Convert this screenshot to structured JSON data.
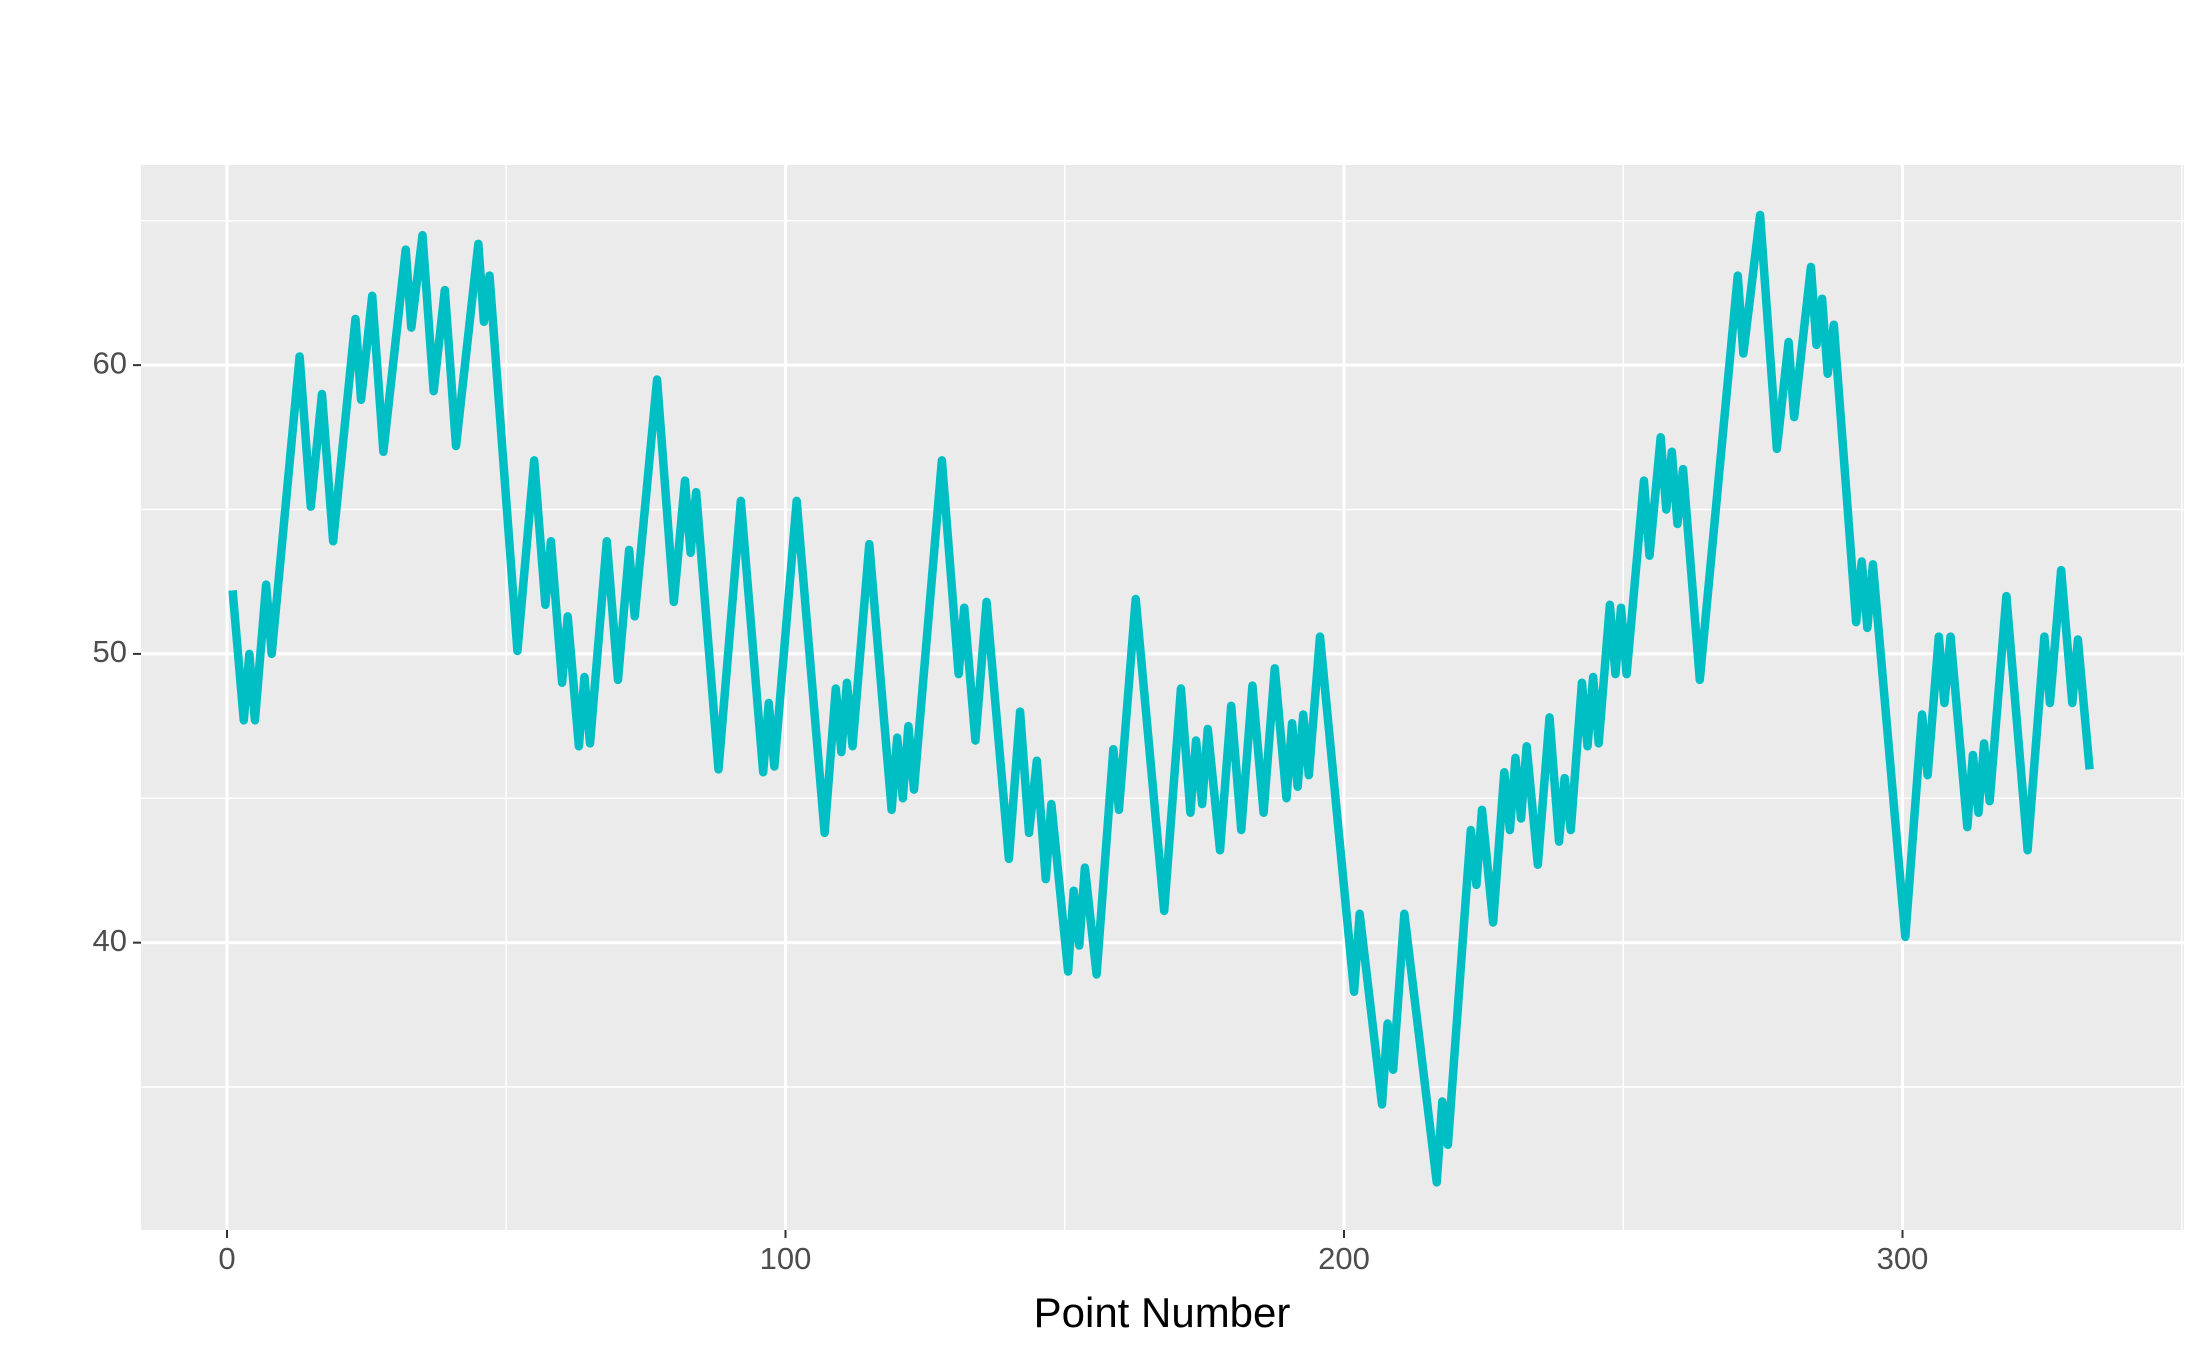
{
  "chart_data": {
    "type": "line",
    "xlabel": "Point Number",
    "x": [
      1,
      3,
      4,
      5,
      7,
      8,
      13,
      15,
      17,
      19,
      23,
      24,
      26,
      28,
      32,
      33,
      35,
      37,
      39,
      41,
      45,
      46,
      47,
      52,
      55,
      57,
      58,
      60,
      61,
      63,
      64,
      65,
      68,
      70,
      72,
      73,
      77,
      80,
      82,
      83,
      84,
      88,
      92,
      96,
      97,
      98,
      102,
      107,
      109,
      110,
      111,
      112,
      115,
      119,
      120,
      121,
      122,
      123,
      128,
      131,
      132,
      134,
      136,
      140,
      142,
      143.6,
      145,
      146.6,
      147.6,
      150.6,
      151.6,
      152.6,
      153.6,
      155.7,
      158.7,
      159.7,
      162.7,
      167.8,
      170.8,
      172.5,
      173.5,
      174.6,
      175.6,
      177.8,
      179.8,
      181.6,
      183.6,
      185.6,
      187.6,
      189.7,
      190.7,
      191.7,
      192.7,
      193.7,
      195.7,
      201.8,
      202.8,
      206.8,
      207.8,
      208.8,
      210.8,
      216.6,
      217.6,
      218.6,
      222.7,
      223.7,
      224.7,
      226.7,
      228.7,
      229.7,
      230.7,
      231.7,
      232.7,
      234.7,
      236.8,
      238.5,
      239.5,
      240.6,
      242.6,
      243.6,
      244.6,
      245.6,
      247.6,
      248.6,
      249.6,
      250.6,
      253.7,
      254.7,
      256.7,
      257.7,
      258.7,
      259.7,
      260.7,
      263.7,
      270.5,
      271.5,
      274.5,
      277.5,
      279.6,
      280.6,
      283.6,
      284.6,
      285.6,
      286.6,
      287.7,
      291.7,
      292.7,
      293.7,
      294.7,
      300.5,
      303.5,
      304.5,
      306.5,
      307.5,
      308.6,
      311.6,
      312.6,
      313.6,
      314.6,
      315.6,
      318.6,
      322.4,
      325.4,
      326.4,
      328.4,
      330.4,
      331.4,
      333.5
    ],
    "series": [
      {
        "color": "#00BFC4",
        "values": [
          52.2,
          47.7,
          50.0,
          47.7,
          52.4,
          50.0,
          60.3,
          55.1,
          59.0,
          53.9,
          61.6,
          58.8,
          62.4,
          57.0,
          64.0,
          61.3,
          64.5,
          59.1,
          62.6,
          57.2,
          64.2,
          61.5,
          63.1,
          50.1,
          56.7,
          51.7,
          53.9,
          49.0,
          51.3,
          46.8,
          49.2,
          46.9,
          53.9,
          49.1,
          53.6,
          51.3,
          59.5,
          51.8,
          56.0,
          53.5,
          55.6,
          46.0,
          55.3,
          45.9,
          48.3,
          46.1,
          55.3,
          43.8,
          48.8,
          46.6,
          49.0,
          46.8,
          53.8,
          44.6,
          47.1,
          45.0,
          47.5,
          45.3,
          56.7,
          49.3,
          51.6,
          47.0,
          51.8,
          42.9,
          48.0,
          43.8,
          46.3,
          42.2,
          44.8,
          39.0,
          41.8,
          39.9,
          42.6,
          38.9,
          46.7,
          44.6,
          51.9,
          41.1,
          48.8,
          44.5,
          47.0,
          44.8,
          47.4,
          43.2,
          48.2,
          43.9,
          48.9,
          44.5,
          49.5,
          45.0,
          47.6,
          45.4,
          47.9,
          45.8,
          50.6,
          38.3,
          41.0,
          34.4,
          37.2,
          35.6,
          41.0,
          31.7,
          34.5,
          33.0,
          43.9,
          42.0,
          44.6,
          40.7,
          45.9,
          43.9,
          46.4,
          44.3,
          46.8,
          42.7,
          47.8,
          43.5,
          45.7,
          43.9,
          49.0,
          46.8,
          49.2,
          46.9,
          51.7,
          49.3,
          51.6,
          49.3,
          56.0,
          53.4,
          57.5,
          55.0,
          57.0,
          54.5,
          56.4,
          49.1,
          63.1,
          60.4,
          65.2,
          57.1,
          60.8,
          58.2,
          63.4,
          60.7,
          62.3,
          59.7,
          61.4,
          51.1,
          53.2,
          50.9,
          53.1,
          40.2,
          47.9,
          45.8,
          50.6,
          48.3,
          50.6,
          44.0,
          46.5,
          44.5,
          46.9,
          44.9,
          52.0,
          43.2,
          50.6,
          48.3,
          52.9,
          48.3,
          50.5,
          46.0
        ]
      }
    ],
    "xlim": [
      -15.4,
      350.4
    ],
    "ylim": [
      30.05,
      66.93
    ],
    "xticks": [
      0,
      100,
      200,
      300
    ],
    "yticks": [
      40,
      50,
      60
    ],
    "xminor": [
      50,
      150,
      250,
      350
    ],
    "yminor": [
      35,
      45,
      55,
      65
    ],
    "grid": true
  }
}
